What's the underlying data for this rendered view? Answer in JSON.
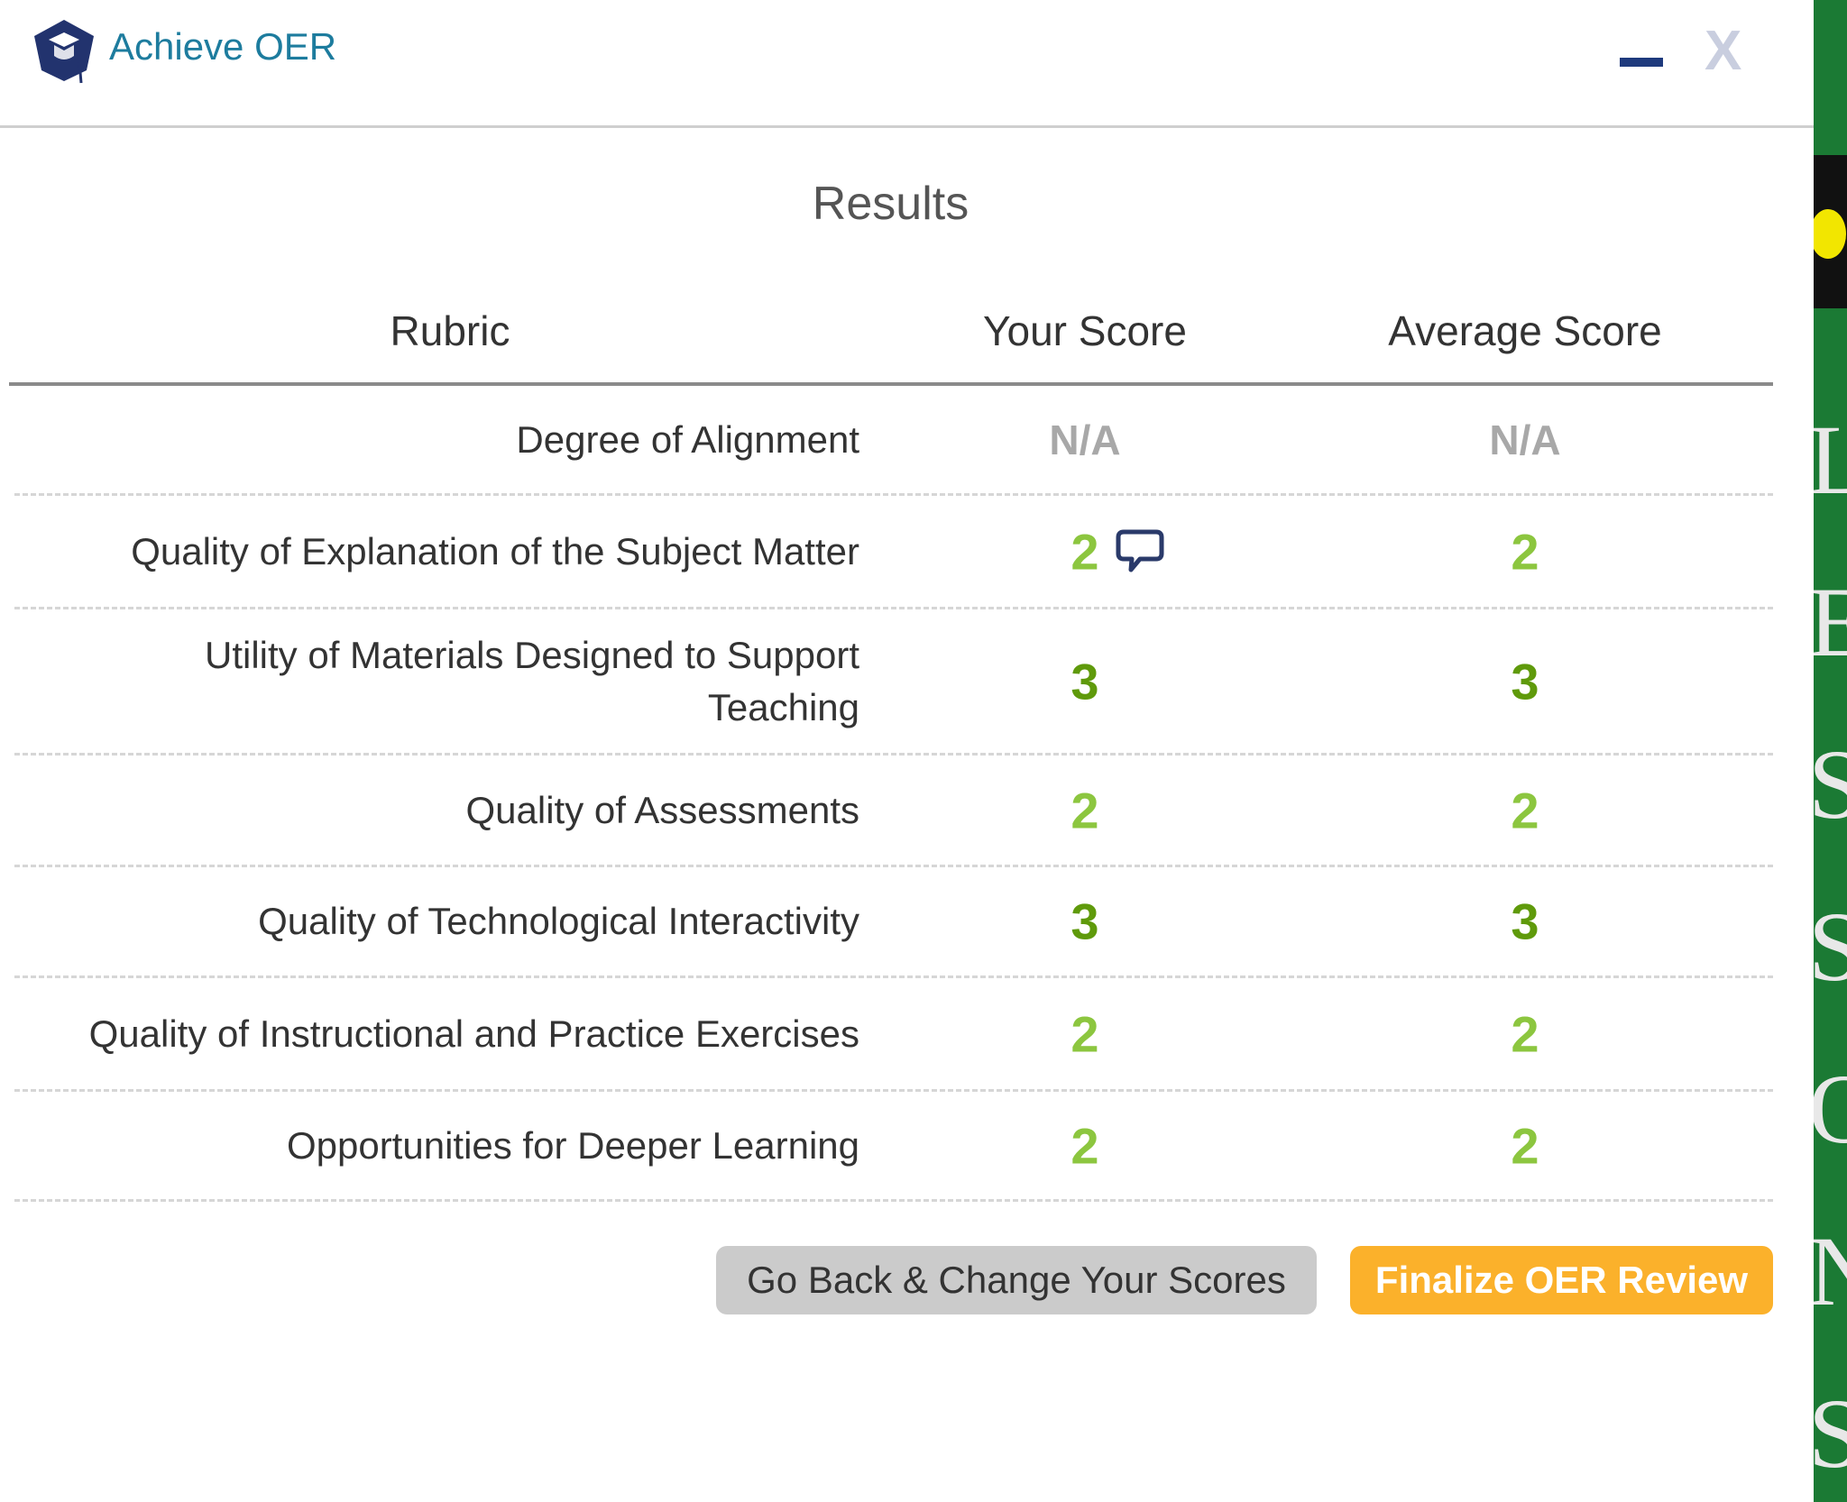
{
  "header": {
    "app_title": "Achieve OER",
    "logo_icon": "graduation-cap-icon",
    "minimize_icon": "minimize-icon",
    "close_label": "X"
  },
  "results": {
    "title": "Results"
  },
  "table": {
    "columns": [
      "Rubric",
      "Your Score",
      "Average Score"
    ],
    "rows": [
      {
        "rubric": "Degree of Alignment",
        "your_score": "N/A",
        "average_score": "N/A"
      },
      {
        "rubric": "Quality of Explanation of the Subject Matter",
        "your_score": "2",
        "average_score": "2",
        "has_comment": true
      },
      {
        "rubric": "Utility of Materials Designed to Support Teaching",
        "your_score": "3",
        "average_score": "3"
      },
      {
        "rubric": "Quality of Assessments",
        "your_score": "2",
        "average_score": "2"
      },
      {
        "rubric": "Quality of Technological Interactivity",
        "your_score": "3",
        "average_score": "3"
      },
      {
        "rubric": "Quality of Instructional and Practice Exercises",
        "your_score": "2",
        "average_score": "2"
      },
      {
        "rubric": "Opportunities for Deeper Learning",
        "your_score": "2",
        "average_score": "2"
      }
    ]
  },
  "buttons": {
    "back": "Go Back & Change Your Scores",
    "finalize": "Finalize OER Review"
  },
  "background": {
    "side_letters": "LESSONS"
  },
  "colors": {
    "score_2": "#8cc63f",
    "score_3": "#5f9a0b",
    "na": "#a8a8a8",
    "finalize": "#fbb12b",
    "title": "#1d7c9e",
    "side_panel": "#1b7a34"
  }
}
